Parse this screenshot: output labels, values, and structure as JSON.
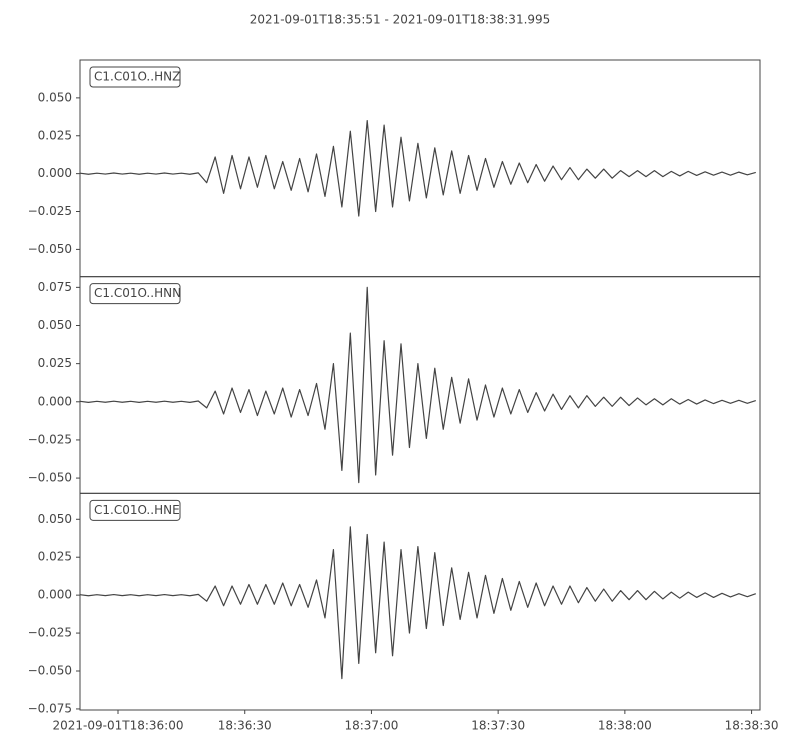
{
  "chart_data": {
    "type": "seismogram",
    "title": "2021-09-01T18:35:51  -  2021-09-01T18:38:31.995",
    "color": "#444444",
    "xlim": [
      66951,
      67111.995
    ],
    "xticks": [
      {
        "value": 66960,
        "label": "2021-09-01T18:36:00"
      },
      {
        "value": 66990,
        "label": "18:36:30"
      },
      {
        "value": 67020,
        "label": "18:37:00"
      },
      {
        "value": 67050,
        "label": "18:37:30"
      },
      {
        "value": 67080,
        "label": "18:38:00"
      },
      {
        "value": 67110,
        "label": "18:38:30"
      }
    ],
    "x": [
      66951,
      66953,
      66955,
      66957,
      66959,
      66961,
      66963,
      66965,
      66967,
      66969,
      66971,
      66973,
      66975,
      66977,
      66979,
      66981,
      66983,
      66985,
      66987,
      66989,
      66991,
      66993,
      66995,
      66997,
      66999,
      67001,
      67003,
      67005,
      67007,
      67009,
      67011,
      67013,
      67015,
      67017,
      67019,
      67021,
      67023,
      67025,
      67027,
      67029,
      67031,
      67033,
      67035,
      67037,
      67039,
      67041,
      67043,
      67045,
      67047,
      67049,
      67051,
      67053,
      67055,
      67057,
      67059,
      67061,
      67063,
      67065,
      67067,
      67069,
      67071,
      67073,
      67075,
      67077,
      67079,
      67081,
      67083,
      67085,
      67087,
      67089,
      67091,
      67093,
      67095,
      67097,
      67099,
      67101,
      67103,
      67105,
      67107,
      67109,
      67111
    ],
    "traces": [
      {
        "name": "C1.C01O..HNZ",
        "ylim": [
          -0.068,
          0.075
        ],
        "yticks": [
          {
            "value": -0.05,
            "label": "−0.050"
          },
          {
            "value": -0.025,
            "label": "−0.025"
          },
          {
            "value": 0,
            "label": "0.000"
          },
          {
            "value": 0.025,
            "label": "0.025"
          },
          {
            "value": 0.05,
            "label": "0.050"
          }
        ],
        "values": [
          0.0003,
          -0.0004,
          0.0003,
          -0.0003,
          0.0004,
          -0.0003,
          0.0003,
          -0.0004,
          0.0003,
          -0.0003,
          0.0004,
          -0.0003,
          0.0003,
          -0.0004,
          0.0005,
          -0.006,
          0.011,
          -0.013,
          0.012,
          -0.01,
          0.011,
          -0.009,
          0.012,
          -0.01,
          0.008,
          -0.011,
          0.01,
          -0.012,
          0.013,
          -0.015,
          0.018,
          -0.022,
          0.028,
          -0.028,
          0.035,
          -0.025,
          0.032,
          -0.022,
          0.024,
          -0.018,
          0.02,
          -0.016,
          0.017,
          -0.014,
          0.015,
          -0.013,
          0.012,
          -0.011,
          0.01,
          -0.009,
          0.008,
          -0.007,
          0.007,
          -0.006,
          0.006,
          -0.005,
          0.005,
          -0.004,
          0.004,
          -0.004,
          0.003,
          -0.003,
          0.003,
          -0.003,
          0.002,
          -0.002,
          0.002,
          -0.002,
          0.002,
          -0.002,
          0.0015,
          -0.0015,
          0.0015,
          -0.0012,
          0.0012,
          -0.001,
          0.001,
          -0.001,
          0.001,
          -0.0008,
          0.0008
        ]
      },
      {
        "name": "C1.C01O..HNN",
        "ylim": [
          -0.06,
          0.082
        ],
        "yticks": [
          {
            "value": -0.05,
            "label": "−0.050"
          },
          {
            "value": -0.025,
            "label": "−0.025"
          },
          {
            "value": 0,
            "label": "0.000"
          },
          {
            "value": 0.025,
            "label": "0.025"
          },
          {
            "value": 0.05,
            "label": "0.050"
          },
          {
            "value": 0.075,
            "label": "0.075"
          }
        ],
        "values": [
          0.0003,
          -0.0004,
          0.0003,
          -0.0003,
          0.0004,
          -0.0003,
          0.0003,
          -0.0004,
          0.0003,
          -0.0003,
          0.0004,
          -0.0003,
          0.0003,
          -0.0004,
          0.0005,
          -0.004,
          0.007,
          -0.008,
          0.009,
          -0.007,
          0.008,
          -0.009,
          0.007,
          -0.008,
          0.009,
          -0.01,
          0.008,
          -0.009,
          0.012,
          -0.018,
          0.025,
          -0.045,
          0.045,
          -0.053,
          0.075,
          -0.048,
          0.04,
          -0.035,
          0.038,
          -0.03,
          0.025,
          -0.024,
          0.022,
          -0.018,
          0.016,
          -0.014,
          0.015,
          -0.012,
          0.011,
          -0.01,
          0.009,
          -0.008,
          0.008,
          -0.007,
          0.006,
          -0.006,
          0.005,
          -0.005,
          0.004,
          -0.004,
          0.004,
          -0.003,
          0.003,
          -0.003,
          0.003,
          -0.0025,
          0.0025,
          -0.002,
          0.002,
          -0.002,
          0.002,
          -0.0015,
          0.0015,
          -0.0015,
          0.0012,
          -0.0012,
          0.001,
          -0.001,
          0.001,
          -0.001,
          0.0008
        ]
      },
      {
        "name": "C1.C01O..HNE",
        "ylim": [
          -0.0757,
          0.0671
        ],
        "yticks": [
          {
            "value": -0.075,
            "label": "−0.075"
          },
          {
            "value": -0.05,
            "label": "−0.050"
          },
          {
            "value": -0.025,
            "label": "−0.025"
          },
          {
            "value": 0,
            "label": "0.000"
          },
          {
            "value": 0.025,
            "label": "0.025"
          },
          {
            "value": 0.05,
            "label": "0.050"
          }
        ],
        "values": [
          0.0003,
          -0.0004,
          0.0003,
          -0.0003,
          0.0004,
          -0.0003,
          0.0003,
          -0.0004,
          0.0003,
          -0.0003,
          0.0004,
          -0.0003,
          0.0003,
          -0.0004,
          0.0005,
          -0.004,
          0.006,
          -0.007,
          0.006,
          -0.006,
          0.007,
          -0.006,
          0.007,
          -0.006,
          0.008,
          -0.007,
          0.007,
          -0.008,
          0.01,
          -0.015,
          0.03,
          -0.055,
          0.045,
          -0.045,
          0.04,
          -0.038,
          0.035,
          -0.04,
          0.03,
          -0.025,
          0.032,
          -0.022,
          0.028,
          -0.02,
          0.018,
          -0.016,
          0.015,
          -0.015,
          0.013,
          -0.012,
          0.011,
          -0.01,
          0.009,
          -0.008,
          0.008,
          -0.007,
          0.006,
          -0.006,
          0.006,
          -0.005,
          0.005,
          -0.004,
          0.004,
          -0.004,
          0.003,
          -0.003,
          0.003,
          -0.003,
          0.0025,
          -0.0025,
          0.002,
          -0.002,
          0.002,
          -0.0015,
          0.0015,
          -0.0015,
          0.0012,
          -0.0012,
          0.001,
          -0.001,
          0.001
        ]
      }
    ]
  }
}
